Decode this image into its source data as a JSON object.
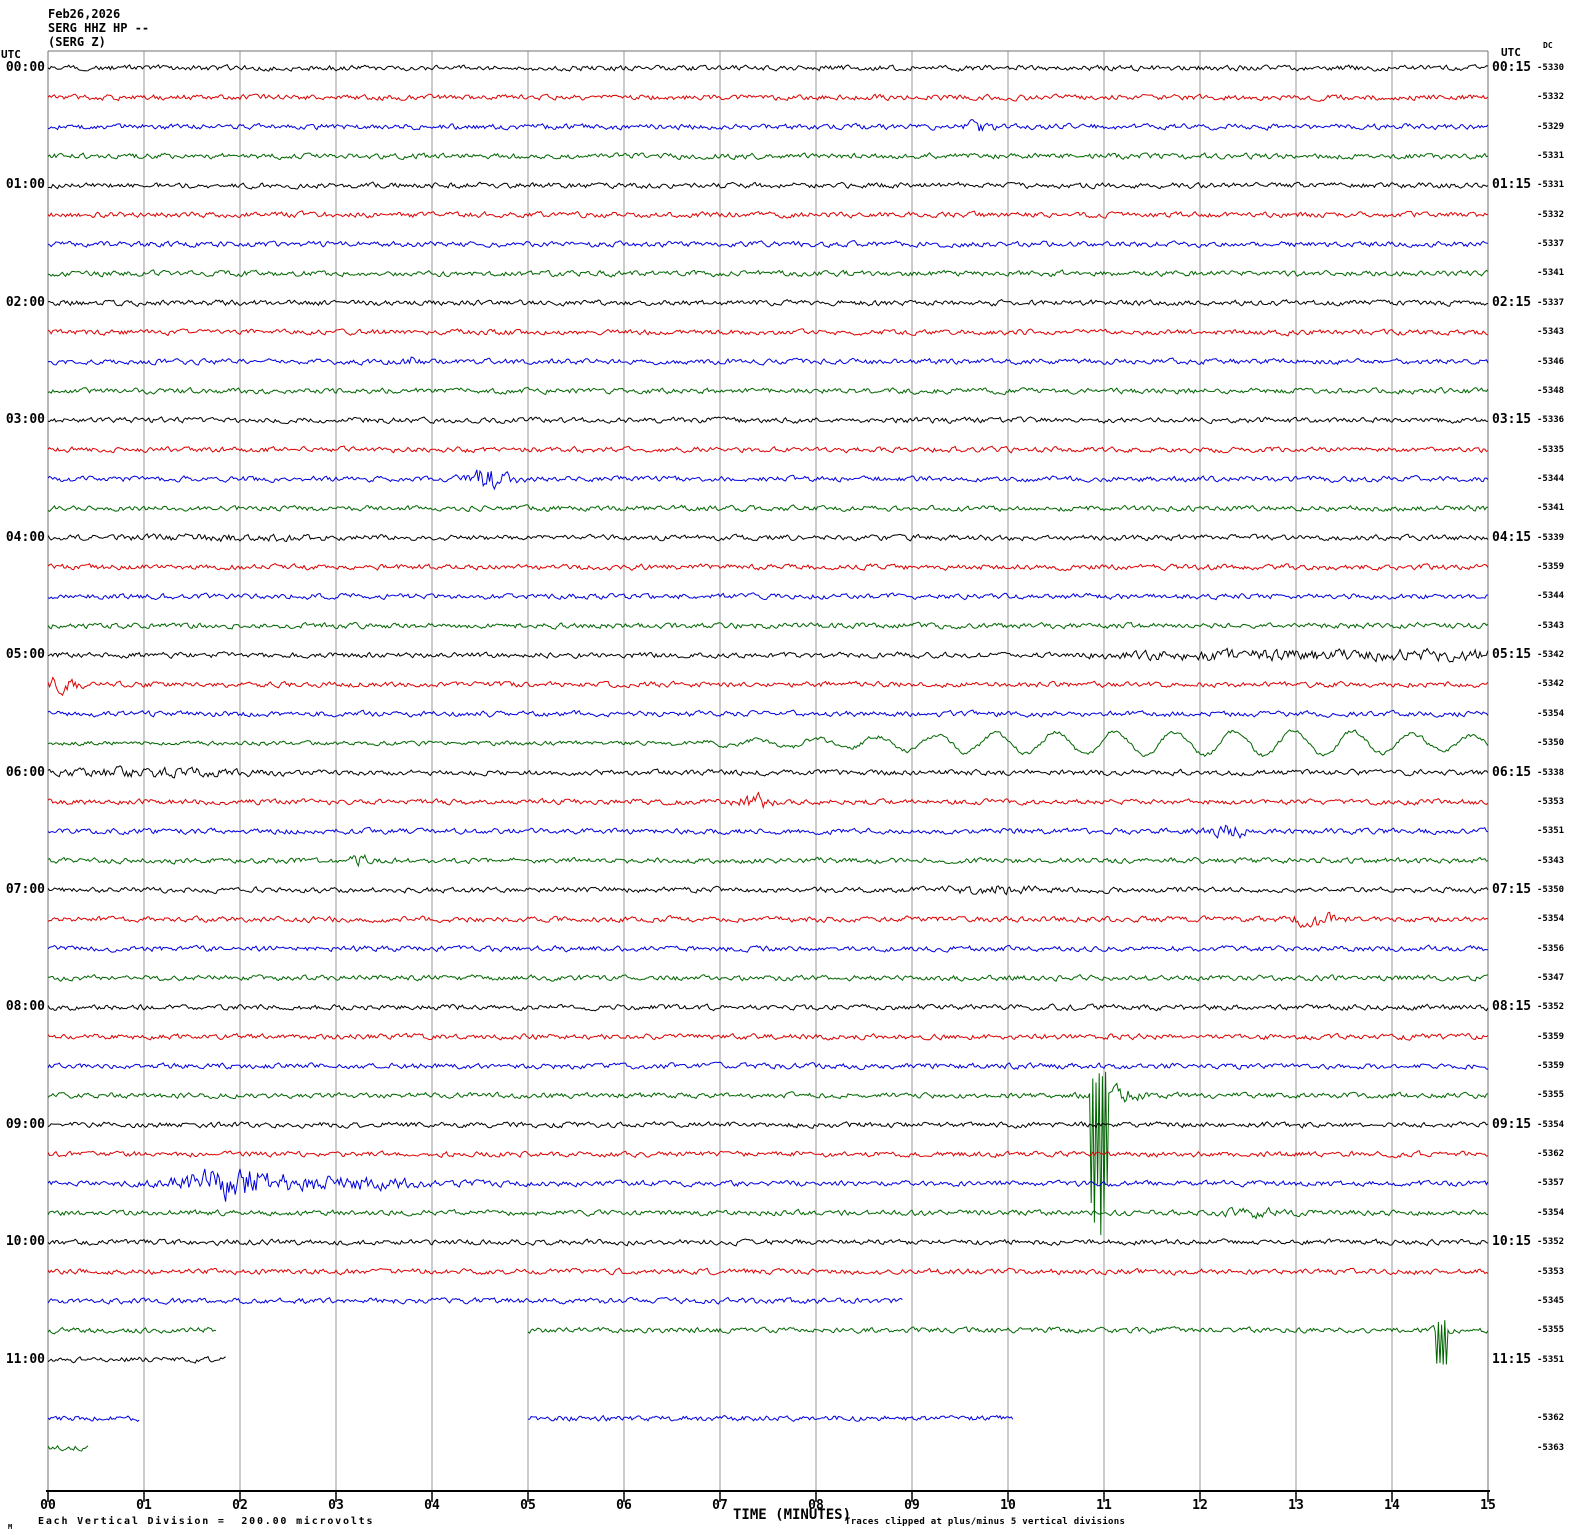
{
  "header": {
    "date": "Feb26,2026",
    "station": "SERG HHZ HP --",
    "channel": "(SERG Z)"
  },
  "axes": {
    "left_header": "UTC",
    "right_header": "UTC",
    "dc_header": "DC",
    "xlabel": "TIME (MINUTES)",
    "x_ticks": [
      "00",
      "01",
      "02",
      "03",
      "04",
      "05",
      "06",
      "07",
      "08",
      "09",
      "10",
      "11",
      "12",
      "13",
      "14",
      "15"
    ],
    "minor_ticks_per_division": 5
  },
  "footer": {
    "corner_mark": "M",
    "scale_note": "Each Vertical Division =  200.00 microvolts",
    "clip_note": "Traces clipped at plus/minus 5 vertical divisions"
  },
  "chart_data": {
    "type": "line",
    "subtype": "helicorder-seismogram",
    "x_range_minutes": [
      0,
      15
    ],
    "minutes_per_row": 15,
    "time_span_utc": "00:00 - 11:45",
    "colors": {
      "black": "#000000",
      "red": "#dd0000",
      "blue": "#0000dd",
      "green": "#006600"
    },
    "grid_color": "#9a9a9a",
    "frame_color": "#707070",
    "axis_color": "#000000",
    "rows": [
      {
        "t": "00:00",
        "c": "black",
        "dc": "-5330",
        "ll": "00:00",
        "rl": "00:15"
      },
      {
        "t": "00:15",
        "c": "red",
        "dc": "-5332"
      },
      {
        "t": "00:30",
        "c": "blue",
        "dc": "-5329",
        "ev": [
          {
            "k": "g",
            "c": 9.7,
            "w": 0.13,
            "a": 3.5
          }
        ]
      },
      {
        "t": "00:45",
        "c": "green",
        "dc": "-5331"
      },
      {
        "t": "01:00",
        "c": "black",
        "dc": "-5331",
        "ll": "01:00",
        "rl": "01:15"
      },
      {
        "t": "01:15",
        "c": "red",
        "dc": "-5332"
      },
      {
        "t": "01:30",
        "c": "blue",
        "dc": "-5337"
      },
      {
        "t": "01:45",
        "c": "green",
        "dc": "-5341"
      },
      {
        "t": "02:00",
        "c": "black",
        "dc": "-5337",
        "ll": "02:00",
        "rl": "02:15"
      },
      {
        "t": "02:15",
        "c": "red",
        "dc": "-5343"
      },
      {
        "t": "02:30",
        "c": "blue",
        "dc": "-5346",
        "ev": [
          {
            "k": "g",
            "c": 3.78,
            "w": 0.06,
            "a": 3.5
          }
        ]
      },
      {
        "t": "02:45",
        "c": "green",
        "dc": "-5348"
      },
      {
        "t": "03:00",
        "c": "black",
        "dc": "-5336",
        "ll": "03:00",
        "rl": "03:15"
      },
      {
        "t": "03:15",
        "c": "red",
        "dc": "-5335"
      },
      {
        "t": "03:30",
        "c": "blue",
        "dc": "-5344",
        "ev": [
          {
            "k": "g",
            "c": 4.6,
            "w": 0.22,
            "a": 8
          }
        ]
      },
      {
        "t": "03:45",
        "c": "green",
        "dc": "-5341"
      },
      {
        "t": "04:00",
        "c": "black",
        "dc": "-5339",
        "ll": "04:00",
        "rl": "04:15",
        "ev": [
          {
            "k": "g",
            "c": 1.9,
            "w": 0.9,
            "a": 1.3
          }
        ]
      },
      {
        "t": "04:15",
        "c": "red",
        "dc": "-5359"
      },
      {
        "t": "04:30",
        "c": "blue",
        "dc": "-5344"
      },
      {
        "t": "04:45",
        "c": "green",
        "dc": "-5343"
      },
      {
        "t": "05:00",
        "c": "black",
        "dc": "-5342",
        "ll": "05:00",
        "rl": "05:15",
        "ev": [
          {
            "k": "ramp",
            "from": 10.6,
            "mult": 2.1
          }
        ]
      },
      {
        "t": "05:15",
        "c": "red",
        "dc": "-5342",
        "ev": [
          {
            "k": "g",
            "c": 0.12,
            "w": 0.2,
            "a": 5
          }
        ]
      },
      {
        "t": "05:30",
        "c": "blue",
        "dc": "-5354"
      },
      {
        "t": "05:45",
        "c": "green",
        "dc": "-5350",
        "n": 1.8,
        "ev": [
          {
            "k": "swell",
            "from": 6,
            "peak": 10.8,
            "period": 0.62,
            "amp": 12
          }
        ]
      },
      {
        "t": "06:00",
        "c": "black",
        "dc": "-5338",
        "ll": "06:00",
        "rl": "06:15",
        "ev": [
          {
            "k": "g",
            "c": 1.0,
            "w": 1.1,
            "a": 2.2
          }
        ]
      },
      {
        "t": "06:15",
        "c": "red",
        "dc": "-5353",
        "ev": [
          {
            "k": "g",
            "c": 7.35,
            "w": 0.18,
            "a": 5.5
          }
        ]
      },
      {
        "t": "06:30",
        "c": "blue",
        "dc": "-5351",
        "ev": [
          {
            "k": "g",
            "c": 12.3,
            "w": 0.2,
            "a": 4.5
          }
        ]
      },
      {
        "t": "06:45",
        "c": "green",
        "dc": "-5343",
        "ev": [
          {
            "k": "g",
            "c": 3.25,
            "w": 0.1,
            "a": 3.5
          }
        ]
      },
      {
        "t": "07:00",
        "c": "black",
        "dc": "-5350",
        "ll": "07:00",
        "rl": "07:15",
        "ev": [
          {
            "k": "g",
            "c": 9.8,
            "w": 0.45,
            "a": 2.5
          }
        ]
      },
      {
        "t": "07:15",
        "c": "red",
        "dc": "-5354",
        "ev": [
          {
            "k": "g",
            "c": 13.2,
            "w": 0.2,
            "a": 5.5
          }
        ]
      },
      {
        "t": "07:30",
        "c": "blue",
        "dc": "-5356"
      },
      {
        "t": "07:45",
        "c": "green",
        "dc": "-5347"
      },
      {
        "t": "08:00",
        "c": "black",
        "dc": "-5352",
        "ll": "08:00",
        "rl": "08:15"
      },
      {
        "t": "08:15",
        "c": "red",
        "dc": "-5359"
      },
      {
        "t": "08:30",
        "c": "blue",
        "dc": "-5359"
      },
      {
        "t": "08:45",
        "c": "green",
        "dc": "-5355",
        "ev": [
          {
            "k": "spike",
            "t": 10.95,
            "w": 0.09,
            "down": 152,
            "up": 24
          },
          {
            "k": "g",
            "c": 11.15,
            "w": 0.25,
            "a": 6
          }
        ]
      },
      {
        "t": "09:00",
        "c": "black",
        "dc": "-5354",
        "ll": "09:00",
        "rl": "09:15"
      },
      {
        "t": "09:15",
        "c": "red",
        "dc": "-5362"
      },
      {
        "t": "09:30",
        "c": "blue",
        "dc": "-5357",
        "ev": [
          {
            "k": "g",
            "c": 1.9,
            "w": 0.5,
            "a": 12
          },
          {
            "k": "g",
            "c": 3.0,
            "w": 0.9,
            "a": 4
          }
        ]
      },
      {
        "t": "09:45",
        "c": "green",
        "dc": "-5354",
        "ev": [
          {
            "k": "g",
            "c": 12.55,
            "w": 0.3,
            "a": 2.5
          }
        ]
      },
      {
        "t": "10:00",
        "c": "black",
        "dc": "-5352",
        "ll": "10:00",
        "rl": "10:15"
      },
      {
        "t": "10:15",
        "c": "red",
        "dc": "-5353"
      },
      {
        "t": "10:30",
        "c": "blue",
        "dc": "-5345",
        "seg": [
          [
            0,
            8.9
          ]
        ]
      },
      {
        "t": "10:45",
        "c": "green",
        "dc": "-5355",
        "seg": [
          [
            0,
            1.75
          ],
          [
            5,
            15
          ]
        ],
        "ev": [
          {
            "k": "spike",
            "t": 14.52,
            "w": 0.06,
            "down": 38,
            "up": 16
          },
          {
            "k": "g",
            "c": 14.52,
            "w": 0.1,
            "a": 4
          }
        ]
      },
      {
        "t": "11:00",
        "c": "black",
        "dc": "-5351",
        "ll": "11:00",
        "rl": "11:15",
        "seg": [
          [
            0,
            1.85
          ]
        ]
      },
      {
        "t": "11:15",
        "c": "red",
        "dc": null,
        "seg": [],
        "missing": true
      },
      {
        "t": "11:30",
        "c": "blue",
        "dc": "-5362",
        "seg": [
          [
            0,
            0.95
          ],
          [
            5,
            10.05
          ]
        ]
      },
      {
        "t": "11:45",
        "c": "green",
        "dc": "-5363",
        "seg": [
          [
            0,
            0.42
          ]
        ]
      }
    ]
  }
}
